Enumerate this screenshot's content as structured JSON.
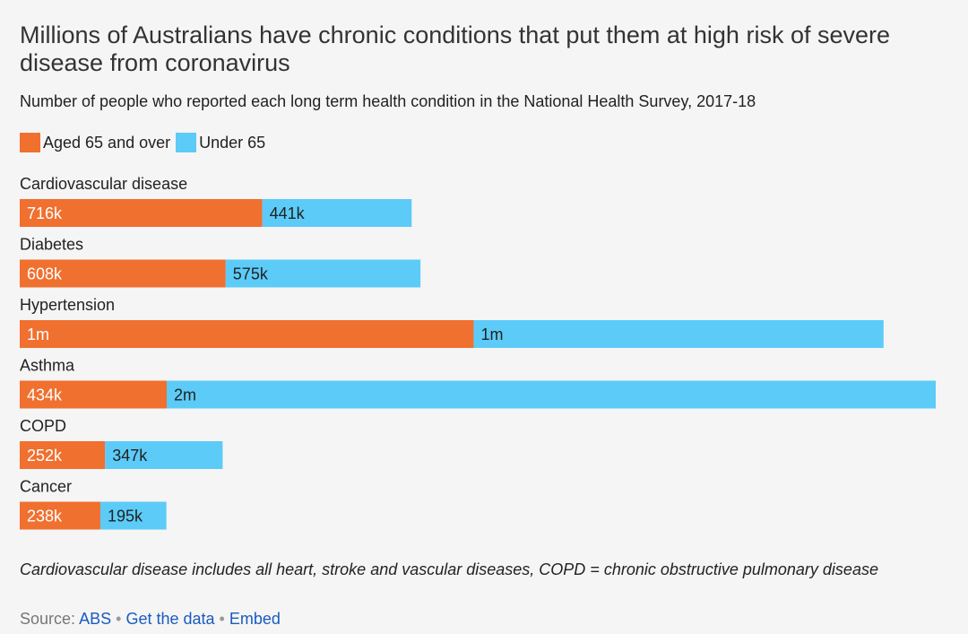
{
  "header": {
    "title": "Millions of Australians have chronic conditions that put them at high risk of severe disease from coronavirus",
    "subtitle": "Number of people who reported each long term health condition in the National Health Survey, 2017-18"
  },
  "footer": {
    "note": "Cardiovascular disease includes all heart, stroke and vascular diseases, COPD = chronic obstructive pulmonary disease",
    "source_label": "Source:",
    "source_link": "ABS",
    "separator": "•",
    "data_link": "Get the data",
    "embed_link": "Embed"
  },
  "colors": {
    "aged65": "#f07030",
    "under65": "#5ccbf8"
  },
  "chart_data": {
    "type": "bar",
    "orientation": "horizontal",
    "stacked": true,
    "categories": [
      "Cardiovascular disease",
      "Diabetes",
      "Hypertension",
      "Asthma",
      "COPD",
      "Cancer"
    ],
    "series": [
      {
        "name": "Aged 65 and over",
        "values": [
          716000,
          608000,
          1340000,
          434000,
          252000,
          238000
        ],
        "labels": [
          "716k",
          "608k",
          "1m",
          "434k",
          "252k",
          "238k"
        ]
      },
      {
        "name": "Under 65",
        "values": [
          441000,
          575000,
          1210000,
          2270000,
          347000,
          195000
        ],
        "labels": [
          "441k",
          "575k",
          "1m",
          "2m",
          "347k",
          "195k"
        ]
      }
    ],
    "xlim": [
      0,
      2704000
    ],
    "legend_position": "top-left",
    "grid": false
  }
}
